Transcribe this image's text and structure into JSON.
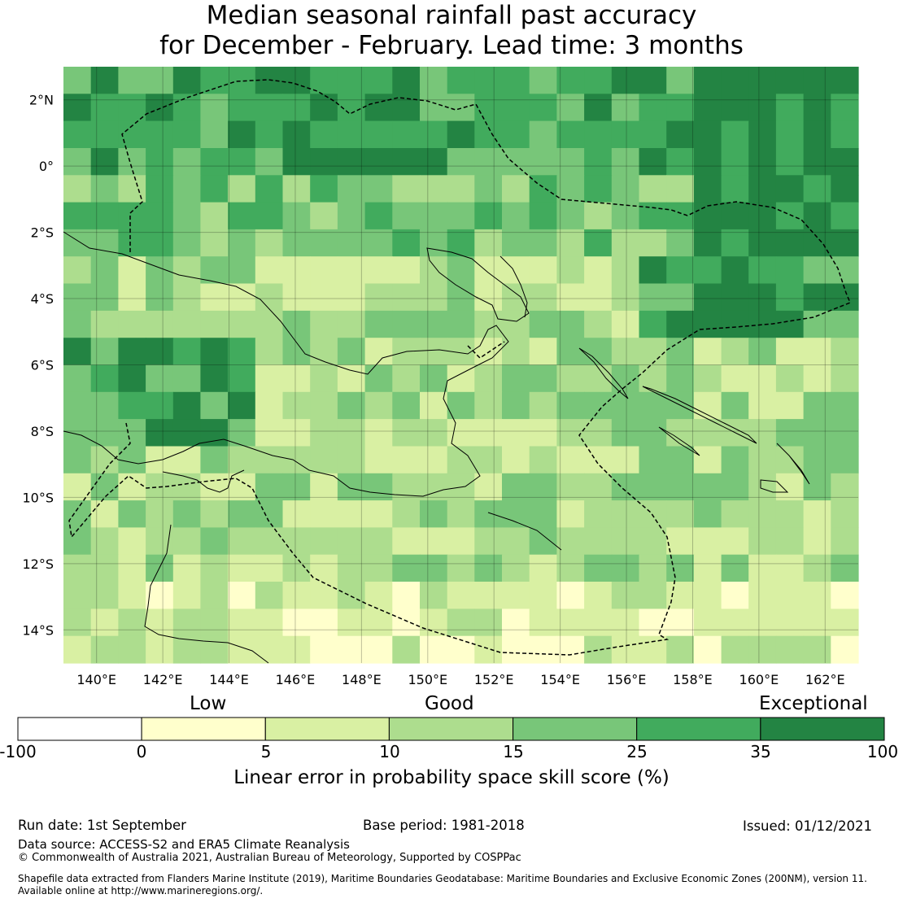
{
  "title": {
    "line1": "Median seasonal rainfall past accuracy",
    "line2": "for December - February. Lead time: 3 months"
  },
  "map": {
    "lon_range": [
      139,
      163
    ],
    "lat_range": [
      -15,
      3
    ],
    "lon_ticks": [
      "140°E",
      "142°E",
      "144°E",
      "146°E",
      "148°E",
      "150°E",
      "152°E",
      "154°E",
      "156°E",
      "158°E",
      "160°E",
      "162°E"
    ],
    "lat_ticks": [
      "2°N",
      "0°",
      "2°S",
      "4°S",
      "6°S",
      "8°S",
      "10°S",
      "12°S",
      "14°S"
    ]
  },
  "legend": {
    "categories": [
      "Low",
      "Good",
      "Exceptional"
    ],
    "bounds": [
      "-100",
      "0",
      "5",
      "10",
      "15",
      "25",
      "35",
      "100"
    ],
    "colors": [
      "#ffffff",
      "#ffffcc",
      "#d9f0a3",
      "#addd8e",
      "#78c679",
      "#41ab5d",
      "#238443"
    ],
    "label": "Linear error in probability space skill score (%)"
  },
  "footer": {
    "run_date": "Run date: 1st September",
    "base_period": "Base period: 1981-2018",
    "issued": "Issued: 01/12/2021",
    "data_source": "Data source: ACCESS-S2 and ERA5 Climate Reanalysis",
    "copyright": "© Commonwealth of Australia 2021, Australian Bureau of Meteorology, Supported by COSPPac",
    "shapefile1": "Shapefile data extracted from Flanders Marine Institute (2019), Maritime Boundaries Geodatabase: Maritime Boundaries and Exclusive Economic Zones (200NM), version 11.",
    "shapefile2": "Available online at http://www.marineregions.org/."
  }
}
